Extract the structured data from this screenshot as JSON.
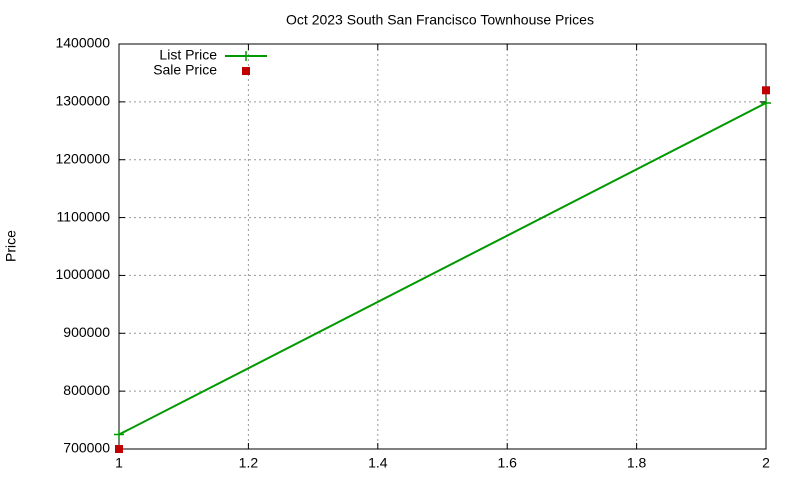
{
  "chart_data": {
    "type": "line",
    "title": "Oct 2023 South San Francisco Townhouse Prices",
    "y_label": "Price",
    "x": [
      1,
      2
    ],
    "series": [
      {
        "name": "List Price",
        "color": "#009900",
        "mode": "lines+markers",
        "values": [
          725000,
          1298000
        ]
      },
      {
        "name": "Sale Price",
        "color": "#c00000",
        "mode": "markers",
        "values": [
          700000,
          1320000
        ]
      }
    ],
    "xlim": [
      1,
      2
    ],
    "xticks": [
      1,
      1.2,
      1.4,
      1.6,
      1.8,
      2
    ],
    "ylim": [
      700000,
      1400000
    ],
    "yticks": [
      700000,
      800000,
      900000,
      1000000,
      1100000,
      1200000,
      1300000,
      1400000
    ],
    "grid": true,
    "legend": "top-left"
  }
}
